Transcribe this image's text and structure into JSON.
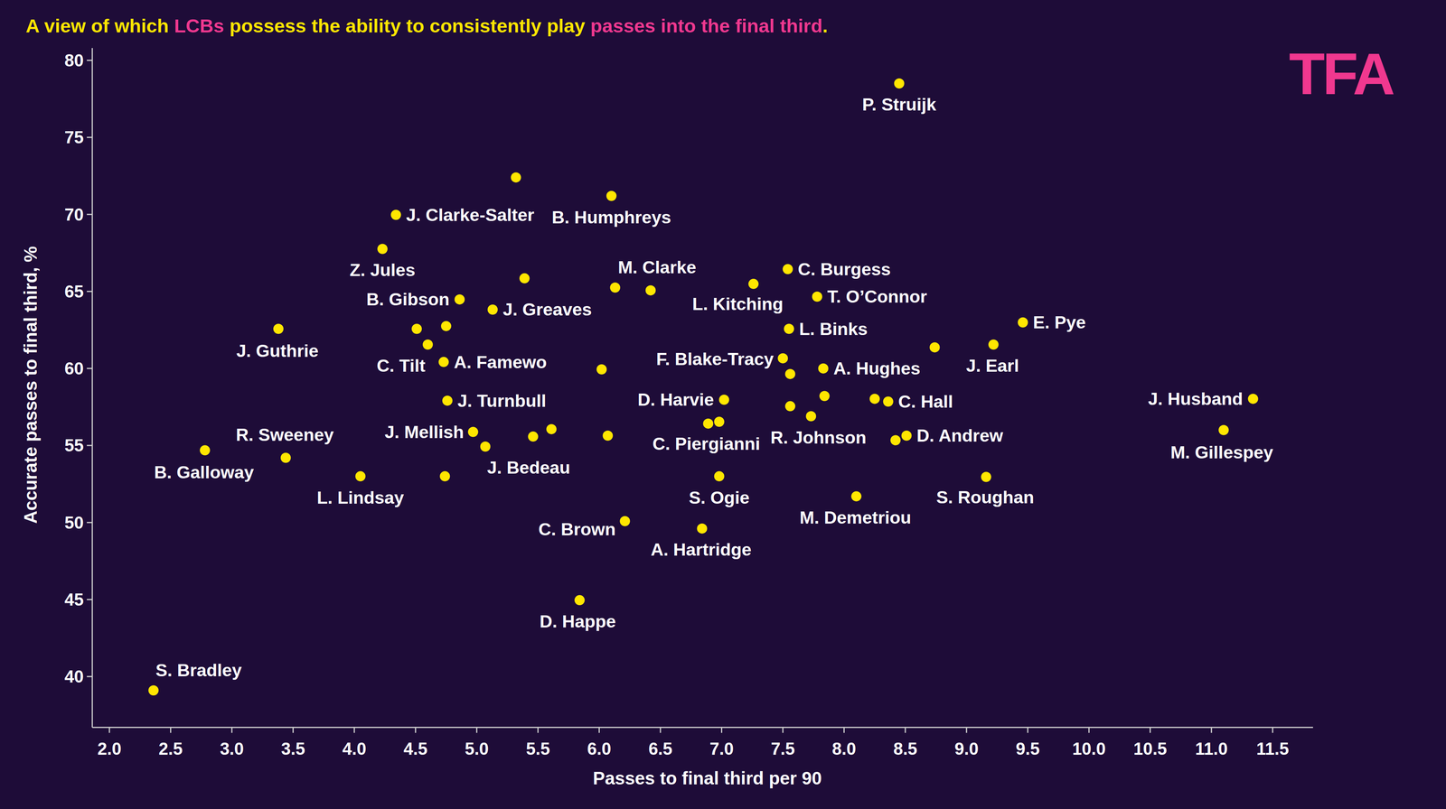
{
  "chart_data": {
    "type": "scatter",
    "title": "A view of which LCBs possess the ability to consistently play passes into the final third.",
    "title_highlights": [
      "LCBs",
      "passes into the final third"
    ],
    "annotations": [
      "TFA"
    ],
    "x_label": "Passes to final third per 90",
    "y_label": "Accurate passes to final third, %",
    "color": "#ffe600",
    "marker": "circle",
    "grid": false,
    "xlim": [
      1.86,
      11.83
    ],
    "ylim": [
      36.7,
      80.8
    ],
    "xticks": [
      {
        "value": 2,
        "label": "2.0"
      },
      2.5,
      {
        "value": 3,
        "label": "3.0"
      },
      3.5,
      {
        "value": 4,
        "label": "4.0"
      },
      4.5,
      {
        "value": 5,
        "label": "5.0"
      },
      5.5,
      {
        "value": 6,
        "label": "6.0"
      },
      6.5,
      {
        "value": 7,
        "label": "7.0"
      },
      7.5,
      {
        "value": 8,
        "label": "8.0"
      },
      8.5,
      {
        "value": 9,
        "label": "9.0"
      },
      9.5,
      {
        "value": 10,
        "label": "10.0"
      },
      10.5,
      {
        "value": 11,
        "label": "11.0"
      },
      11.5
    ],
    "yticks": [
      40,
      45,
      50,
      55,
      60,
      65,
      70,
      75,
      80
    ],
    "x": [
      8.45,
      5.32,
      4.34,
      6.1,
      4.23,
      5.39,
      4.86,
      5.13,
      6.13,
      6.42,
      7.54,
      7.26,
      7.78,
      7.55,
      9.46,
      9.22,
      8.74,
      3.38,
      4.51,
      4.75,
      4.6,
      4.73,
      6.02,
      7.5,
      7.83,
      7.56,
      4.76,
      7.02,
      7.56,
      7.84,
      7.73,
      8.25,
      8.36,
      11.34,
      11.1,
      6.89,
      6.98,
      8.51,
      8.42,
      4.97,
      5.07,
      5.46,
      5.61,
      6.07,
      3.44,
      2.78,
      4.05,
      4.74,
      6.98,
      9.16,
      8.1,
      6.21,
      6.84,
      5.84,
      2.36
    ],
    "values": [
      78.5,
      72.4,
      69.97,
      71.2,
      67.76,
      65.85,
      64.48,
      63.82,
      65.25,
      65.07,
      66.45,
      65.49,
      64.66,
      62.57,
      62.99,
      61.55,
      61.37,
      62.57,
      62.57,
      62.75,
      61.55,
      60.42,
      59.94,
      60.66,
      60.0,
      59.64,
      57.91,
      57.97,
      57.55,
      58.21,
      56.9,
      58.03,
      57.85,
      58.03,
      56.0,
      56.42,
      56.54,
      55.64,
      55.34,
      55.88,
      54.93,
      55.58,
      56.06,
      55.64,
      54.2,
      54.69,
      53.0,
      53.0,
      53.0,
      52.96,
      51.7,
      50.09,
      49.61,
      44.96,
      39.1
    ],
    "labels": [
      "P. Struijk",
      null,
      "J. Clarke-Salter",
      "B. Humphreys",
      "Z. Jules",
      null,
      "B. Gibson",
      "J. Greaves",
      null,
      "M. Clarke",
      "C. Burgess",
      "L. Kitching",
      "T. O’Connor",
      "L. Binks",
      "E. Pye",
      "J. Earl",
      null,
      "J. Guthrie",
      null,
      null,
      "C. Tilt",
      "A. Famewo",
      null,
      "F. Blake-Tracy",
      "A. Hughes",
      null,
      "J. Turnbull",
      "D. Harvie",
      null,
      null,
      "R. Johnson",
      null,
      "C. Hall",
      "J. Husband",
      "M. Gillespey",
      "C. Piergianni",
      null,
      "D. Andrew",
      null,
      "J. Mellish",
      "J. Bedeau",
      null,
      null,
      null,
      "R. Sweeney",
      "B. Galloway",
      "L. Lindsay",
      null,
      "S. Ogie",
      "S. Roughan",
      "M. Demetriou",
      "C. Brown",
      "A. Hartridge",
      "D. Happe",
      "S. Bradley"
    ]
  }
}
